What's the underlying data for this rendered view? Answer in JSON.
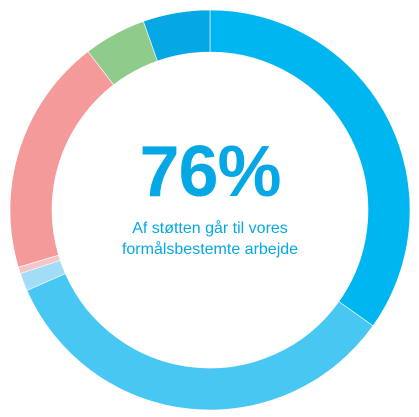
{
  "chart_data": {
    "type": "pie",
    "variant": "donut",
    "center_value": "76%",
    "center_caption": "Af støtten går til vores formålsbestemte arbejde",
    "slices": [
      {
        "value": 38.7,
        "color": "#00b6f0"
      },
      {
        "value": 37.3,
        "color": "#48c7f3"
      },
      {
        "value": 1.6,
        "color": "#a2dcf7"
      },
      {
        "value": 0.6,
        "color": "#f4c6c8"
      },
      {
        "value": 21.3,
        "color": "#f49a9a"
      },
      {
        "value": 5.6,
        "color": "#8fcb8b"
      },
      {
        "value": 6.0,
        "color": "#05a7e5"
      }
    ],
    "legend": "none",
    "labels": []
  }
}
